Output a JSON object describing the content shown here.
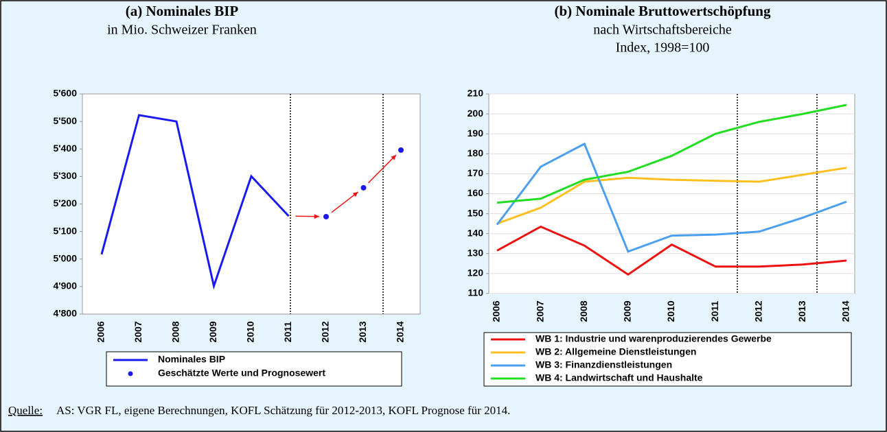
{
  "chart_data": [
    {
      "type": "line",
      "title": "(a) Nominales BIP",
      "subtitle": [
        "in Mio. Schweizer Franken"
      ],
      "categories": [
        "2006",
        "2007",
        "2008",
        "2009",
        "2010",
        "2011",
        "2012",
        "2013",
        "2014"
      ],
      "series": [
        {
          "name": "Nominales BIP",
          "color": "#1a1aee",
          "style": "line",
          "values": [
            5017,
            5523,
            5500,
            4902,
            5301,
            5156,
            null,
            null,
            null
          ]
        },
        {
          "name": "Geschätzte Werte und Prognosewert",
          "color": "#1a1aee",
          "style": "marker",
          "values": [
            null,
            null,
            null,
            null,
            null,
            null,
            5154,
            5259,
            5396
          ]
        }
      ],
      "ylim": [
        4800,
        5600
      ],
      "yticks": [
        {
          "value": 4800,
          "label": "4'800"
        },
        {
          "value": 4900,
          "label": "4'900"
        },
        {
          "value": 5000,
          "label": "5'000"
        },
        {
          "value": 5100,
          "label": "5'100"
        },
        {
          "value": 5200,
          "label": "5'200"
        },
        {
          "value": 5300,
          "label": "5'300"
        },
        {
          "value": 5400,
          "label": "5'400"
        },
        {
          "value": 5500,
          "label": "5'500"
        },
        {
          "value": 5600,
          "label": "5'600"
        }
      ],
      "grid": false
    },
    {
      "type": "line",
      "title": "(b) Nominale Bruttowertschöpfung",
      "subtitle": [
        "nach Wirtschaftsbereiche",
        "Index, 1998=100"
      ],
      "categories": [
        "2006",
        "2007",
        "2008",
        "2009",
        "2010",
        "2011",
        "2012",
        "2013",
        "2014"
      ],
      "series": [
        {
          "name": "WB 1: Industrie und warenproduzierendes Gewerbe",
          "color": "#ee1111",
          "style": "line",
          "values": [
            131.5,
            143.5,
            134,
            119.5,
            134.5,
            123.5,
            123.5,
            124.5,
            126.5
          ]
        },
        {
          "name": "WB 2: Allgemeine Dienstleistungen",
          "color": "#ffbf1f",
          "style": "line",
          "values": [
            145,
            153,
            166,
            168,
            167,
            166.5,
            166,
            169.5,
            173
          ]
        },
        {
          "name": "WB 3: Finanzdienstleistungen",
          "color": "#4a9ff0",
          "style": "line",
          "values": [
            144.5,
            173.5,
            185,
            131,
            139,
            139.5,
            141,
            148,
            156
          ]
        },
        {
          "name": "WB 4: Landwirtschaft und Haushalte",
          "color": "#22dd22",
          "style": "line",
          "values": [
            155.5,
            157.5,
            167,
            171,
            179,
            190,
            196,
            200,
            204.5
          ]
        }
      ],
      "ylim": [
        110,
        210
      ],
      "yticks": [
        110,
        120,
        130,
        140,
        150,
        160,
        170,
        180,
        190,
        200,
        210
      ],
      "grid": true
    }
  ],
  "source_label": "Quelle:",
  "source": "AS: VGR FL, eigene Berechnungen, KOFL Schätzung für 2012-2013, KOFL Prognose für 2014."
}
